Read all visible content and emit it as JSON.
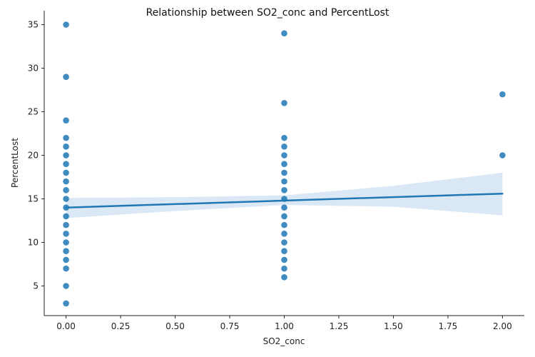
{
  "chart_data": {
    "type": "scatter",
    "title": "Relationship between SO2_conc and PercentLost",
    "xlabel": "SO2_conc",
    "ylabel": "PercentLost",
    "xlim": [
      -0.1,
      2.1
    ],
    "ylim": [
      1.6,
      36.6
    ],
    "x_ticks": [
      0.0,
      0.25,
      0.5,
      0.75,
      1.0,
      1.25,
      1.5,
      1.75,
      2.0
    ],
    "x_tick_labels": [
      "0.00",
      "0.25",
      "0.50",
      "0.75",
      "1.00",
      "1.25",
      "1.50",
      "1.75",
      "2.00"
    ],
    "y_ticks": [
      5,
      10,
      15,
      20,
      25,
      30,
      35
    ],
    "y_tick_labels": [
      "5",
      "10",
      "15",
      "20",
      "25",
      "30",
      "35"
    ],
    "grid": false,
    "colors": {
      "points": "#1f77b4",
      "line": "#1f77b4",
      "band": "#c6dbef"
    },
    "series": [
      {
        "kind": "points",
        "points": [
          [
            0,
            3
          ],
          [
            0,
            5
          ],
          [
            0,
            7
          ],
          [
            0,
            8
          ],
          [
            0,
            9
          ],
          [
            0,
            10
          ],
          [
            0,
            11
          ],
          [
            0,
            12
          ],
          [
            0,
            13
          ],
          [
            0,
            14
          ],
          [
            0,
            15
          ],
          [
            0,
            16
          ],
          [
            0,
            17
          ],
          [
            0,
            18
          ],
          [
            0,
            19
          ],
          [
            0,
            20
          ],
          [
            0,
            21
          ],
          [
            0,
            22
          ],
          [
            0,
            24
          ],
          [
            0,
            29
          ],
          [
            0,
            35
          ],
          [
            1,
            6
          ],
          [
            1,
            7
          ],
          [
            1,
            8
          ],
          [
            1,
            9
          ],
          [
            1,
            10
          ],
          [
            1,
            11
          ],
          [
            1,
            12
          ],
          [
            1,
            13
          ],
          [
            1,
            14
          ],
          [
            1,
            15
          ],
          [
            1,
            16
          ],
          [
            1,
            17
          ],
          [
            1,
            18
          ],
          [
            1,
            19
          ],
          [
            1,
            20
          ],
          [
            1,
            21
          ],
          [
            1,
            22
          ],
          [
            1,
            26
          ],
          [
            1,
            34
          ],
          [
            2,
            20
          ],
          [
            2,
            27
          ]
        ]
      },
      {
        "kind": "regression",
        "line": [
          [
            0,
            14.0
          ],
          [
            2,
            15.6
          ]
        ],
        "ci_upper": [
          [
            0,
            15.1
          ],
          [
            0.5,
            15.2
          ],
          [
            1,
            15.4
          ],
          [
            1.5,
            16.5
          ],
          [
            2,
            18.0
          ]
        ],
        "ci_lower": [
          [
            0,
            12.8
          ],
          [
            0.5,
            13.6
          ],
          [
            1,
            14.3
          ],
          [
            1.5,
            14.1
          ],
          [
            2,
            13.1
          ]
        ]
      }
    ]
  }
}
